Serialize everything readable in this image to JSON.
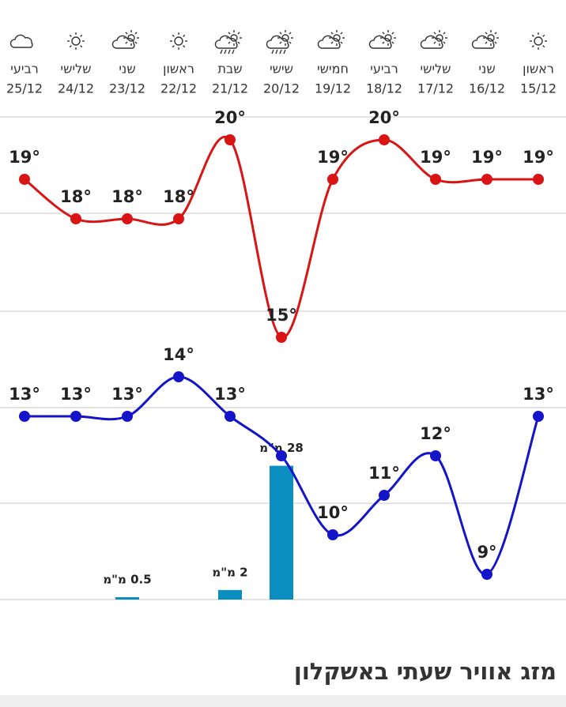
{
  "chart_data": {
    "type": "line",
    "title": "מזג אוויר שעתי באשקלון",
    "categories": [
      "ראשון",
      "שני",
      "שלישי",
      "רביעי",
      "חמישי",
      "שישי",
      "שבת",
      "ראשון",
      "שני",
      "שלישי",
      "רביעי"
    ],
    "dates": [
      "15/12",
      "16/12",
      "17/12",
      "18/12",
      "19/12",
      "20/12",
      "21/12",
      "22/12",
      "23/12",
      "24/12",
      "25/12"
    ],
    "ylim": [
      8.36,
      20.58
    ],
    "y2lim": [
      0,
      101
    ],
    "series": [
      {
        "name": "high",
        "color": "#d81414",
        "values": [
          19,
          19,
          19,
          20,
          19,
          15,
          20,
          18,
          18,
          18,
          19
        ],
        "value_labels": [
          "19°",
          "19°",
          "19°",
          "20°",
          "19°",
          "15°",
          "20°",
          "18°",
          "18°",
          "18°",
          "19°"
        ]
      },
      {
        "name": "low",
        "color": "#1414c8",
        "values": [
          13,
          9,
          12,
          11,
          10,
          12,
          13,
          14,
          13,
          13,
          13
        ],
        "value_labels": [
          "13°",
          "9°",
          "12°",
          "11°",
          "10°",
          null,
          "13°",
          "14°",
          "13°",
          "13°",
          "13°"
        ]
      },
      {
        "name": "rain",
        "type": "bar",
        "axis": "y2",
        "color": "#0a8fc0",
        "values": [
          null,
          null,
          null,
          null,
          null,
          28,
          2,
          null,
          0.5,
          null,
          null
        ],
        "value_labels": [
          null,
          null,
          null,
          null,
          null,
          "28 מ\"מ",
          "2 מ\"מ",
          null,
          "0.5 מ\"מ",
          null,
          null
        ]
      }
    ]
  }
}
